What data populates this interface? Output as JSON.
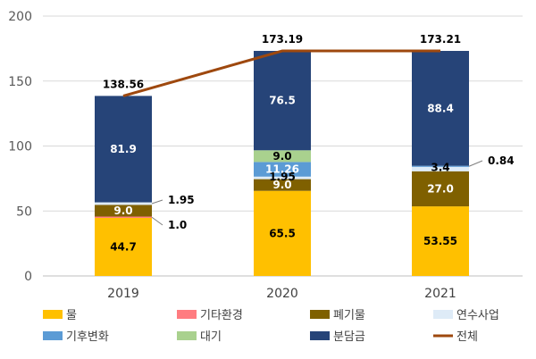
{
  "chart_data": {
    "type": "bar",
    "stacked": true,
    "categories": [
      "2019",
      "2020",
      "2021"
    ],
    "ylim": [
      0,
      200
    ],
    "yticks": [
      0,
      50,
      100,
      150,
      200
    ],
    "grid": true,
    "legend_position": "bottom",
    "series": [
      {
        "name": "물",
        "values": [
          44.7,
          65.5,
          53.55
        ],
        "labels": [
          "44.7",
          "65.5",
          "53.55"
        ],
        "color": "#FFC000",
        "label_color": "#000000"
      },
      {
        "name": "기타환경",
        "values": [
          1.0,
          0,
          0
        ],
        "labels": [
          "1.0",
          "",
          ""
        ],
        "color": "#FF7C80",
        "label_color": "#000000"
      },
      {
        "name": "폐기물",
        "values": [
          9.0,
          9.0,
          27.0
        ],
        "labels": [
          "9.0",
          "9.0",
          "27.0"
        ],
        "color": "#7F6000",
        "label_color": "#ffffff"
      },
      {
        "name": "연수사업",
        "values": [
          1.95,
          1.95,
          3.4
        ],
        "labels": [
          "1.95",
          "1.95",
          "3.4"
        ],
        "color": "#DEEBF7",
        "label_color": "#000000"
      },
      {
        "name": "기후변화",
        "values": [
          0,
          11.26,
          0.84
        ],
        "labels": [
          "",
          "11.26",
          "0.84"
        ],
        "color": "#5B9BD5",
        "label_color": "#ffffff"
      },
      {
        "name": "대기",
        "values": [
          0,
          9.0,
          0
        ],
        "labels": [
          "",
          "9.0",
          ""
        ],
        "color": "#A9D18E",
        "label_color": "#000000"
      },
      {
        "name": "분담금",
        "values": [
          81.9,
          76.5,
          88.4
        ],
        "labels": [
          "81.9",
          "76.5",
          "88.4"
        ],
        "color": "#264478",
        "label_color": "#ffffff"
      }
    ],
    "total": {
      "name": "전체",
      "values": [
        138.56,
        173.19,
        173.21
      ],
      "labels": [
        "138.56",
        "173.19",
        "173.21"
      ],
      "color": "#9E480E"
    }
  }
}
